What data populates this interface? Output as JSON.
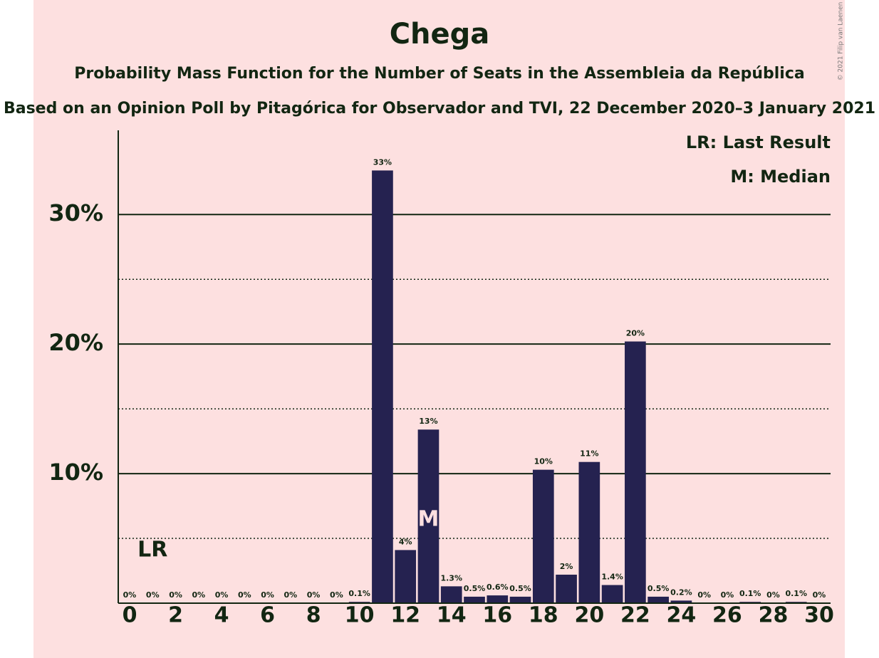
{
  "chart_data": {
    "type": "bar",
    "title": "Chega",
    "subtitle": "Probability Mass Function for the Number of Seats in the Assembleia da República",
    "subtitle2": "Based on an Opinion Poll by Pitagórica for Observador and TVI, 22 December 2020–3 January 2021",
    "copyright": "© 2021 Filip van Laenen",
    "categories": [
      0,
      1,
      2,
      3,
      4,
      5,
      6,
      7,
      8,
      9,
      10,
      11,
      12,
      13,
      14,
      15,
      16,
      17,
      18,
      19,
      20,
      21,
      22,
      23,
      24,
      25,
      26,
      27,
      28,
      29,
      30
    ],
    "values": [
      0,
      0,
      0,
      0,
      0,
      0,
      0,
      0,
      0,
      0,
      0.1,
      33.4,
      4.1,
      13.4,
      1.3,
      0.5,
      0.6,
      0.5,
      10.3,
      2.2,
      10.9,
      1.4,
      20.2,
      0.5,
      0.2,
      0,
      0,
      0.1,
      0,
      0.1,
      0
    ],
    "value_labels": [
      "0%",
      "0%",
      "0%",
      "0%",
      "0%",
      "0%",
      "0%",
      "0%",
      "0%",
      "0%",
      "0.1%",
      "33%",
      "4%",
      "13%",
      "1.3%",
      "0.5%",
      "0.6%",
      "0.5%",
      "10%",
      "2%",
      "11%",
      "1.4%",
      "20%",
      "0.5%",
      "0.2%",
      "0%",
      "0%",
      "0.1%",
      "0%",
      "0.1%",
      "0%"
    ],
    "color": "#252250",
    "xlim": [
      0,
      30
    ],
    "xticks": [
      0,
      2,
      4,
      6,
      8,
      10,
      12,
      14,
      16,
      18,
      20,
      22,
      24,
      26,
      28,
      30
    ],
    "ylim": [
      0,
      36.5
    ],
    "yticks": [
      {
        "value": 10,
        "label": "10%"
      },
      {
        "value": 20,
        "label": "20%"
      },
      {
        "value": 30,
        "label": "30%"
      }
    ],
    "minor_yticks": [
      5,
      15,
      25
    ],
    "grid": true,
    "last_result": 1,
    "last_result_label": "LR",
    "median": 13,
    "median_label": "M",
    "legend": [
      "LR: Last Result",
      "M: Median"
    ],
    "legend_position": "upper right"
  }
}
